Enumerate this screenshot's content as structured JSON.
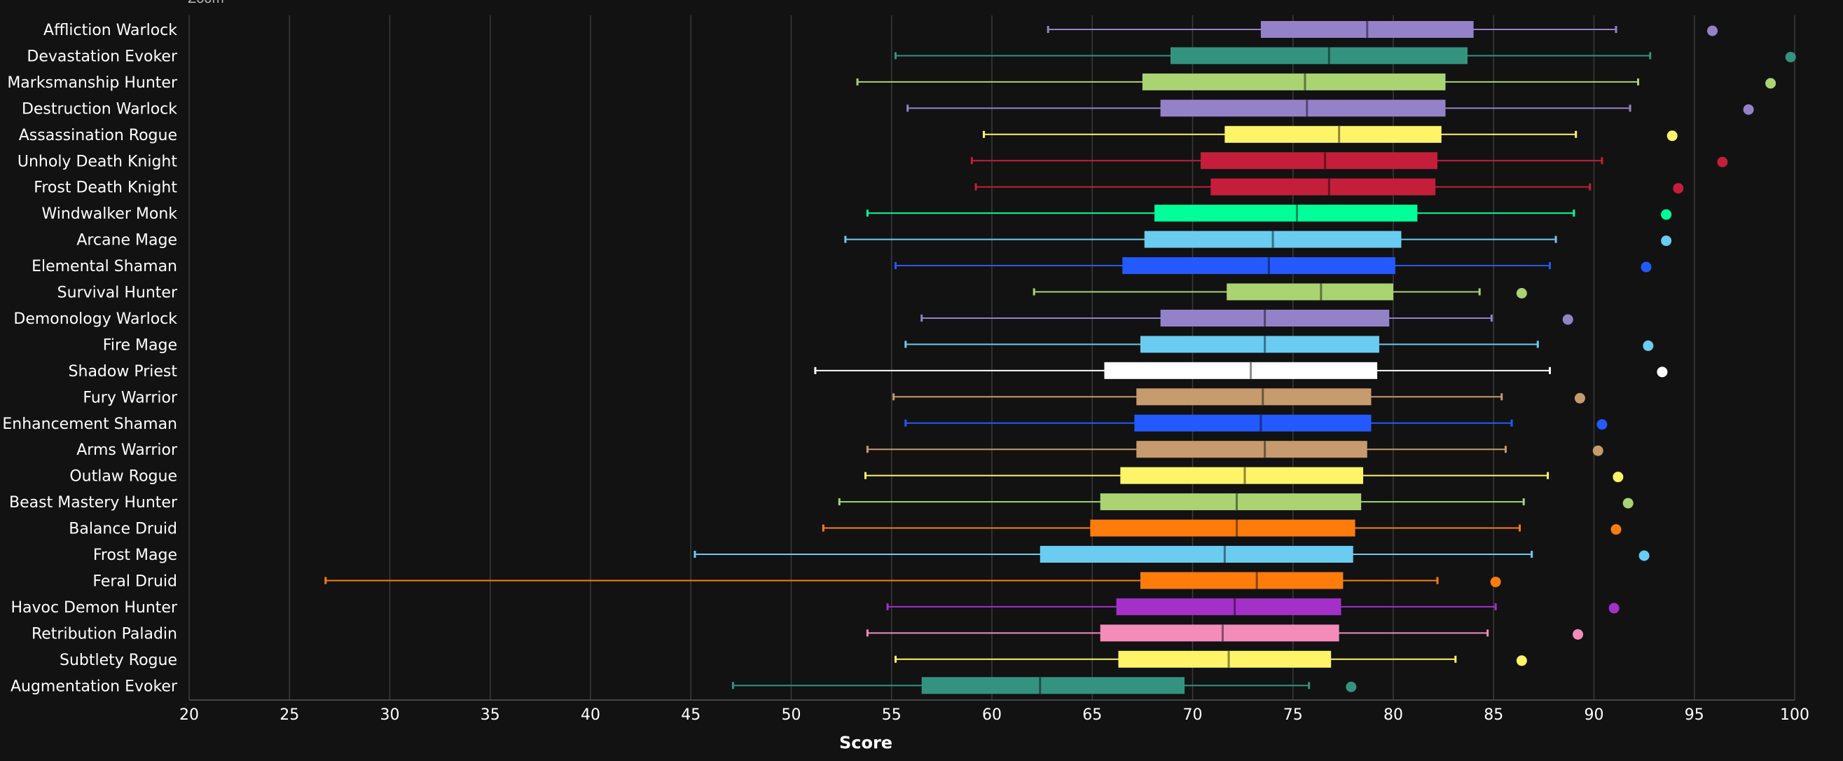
{
  "top_label": "Zoom",
  "chart_data": {
    "type": "boxplot",
    "title": "",
    "xlabel": "Score",
    "ylabel": "",
    "xlim": [
      20,
      100
    ],
    "x_ticks": [
      20,
      25,
      30,
      35,
      40,
      45,
      50,
      55,
      60,
      65,
      70,
      75,
      80,
      85,
      90,
      95,
      100
    ],
    "grid": true,
    "orientation": "horizontal",
    "series": [
      {
        "name": "Affliction Warlock",
        "color": "#9482C9",
        "whisker_low": 62.8,
        "q1": 73.4,
        "median": 78.7,
        "q3": 84.0,
        "whisker_high": 91.1,
        "outlier": 95.9
      },
      {
        "name": "Devastation Evoker",
        "color": "#33937F",
        "whisker_low": 55.2,
        "q1": 68.9,
        "median": 76.8,
        "q3": 83.7,
        "whisker_high": 92.8,
        "outlier": 99.8
      },
      {
        "name": "Marksmanship Hunter",
        "color": "#AAD372",
        "whisker_low": 53.3,
        "q1": 67.5,
        "median": 75.6,
        "q3": 82.6,
        "whisker_high": 92.2,
        "outlier": 98.8
      },
      {
        "name": "Destruction Warlock",
        "color": "#9482C9",
        "whisker_low": 55.8,
        "q1": 68.4,
        "median": 75.7,
        "q3": 82.6,
        "whisker_high": 91.8,
        "outlier": 97.7
      },
      {
        "name": "Assassination Rogue",
        "color": "#FFF468",
        "whisker_low": 59.6,
        "q1": 71.6,
        "median": 77.3,
        "q3": 82.4,
        "whisker_high": 89.1,
        "outlier": 93.9
      },
      {
        "name": "Unholy Death Knight",
        "color": "#C41E3A",
        "whisker_low": 59.0,
        "q1": 70.4,
        "median": 76.6,
        "q3": 82.2,
        "whisker_high": 90.4,
        "outlier": 96.4
      },
      {
        "name": "Frost Death Knight",
        "color": "#C41E3A",
        "whisker_low": 59.2,
        "q1": 70.9,
        "median": 76.8,
        "q3": 82.1,
        "whisker_high": 89.8,
        "outlier": 94.2
      },
      {
        "name": "Windwalker Monk",
        "color": "#00FF98",
        "whisker_low": 53.8,
        "q1": 68.1,
        "median": 75.2,
        "q3": 81.2,
        "whisker_high": 89.0,
        "outlier": 93.6
      },
      {
        "name": "Arcane Mage",
        "color": "#69CCF0",
        "whisker_low": 52.7,
        "q1": 67.6,
        "median": 74.0,
        "q3": 80.4,
        "whisker_high": 88.1,
        "outlier": 93.6
      },
      {
        "name": "Elemental Shaman",
        "color": "#2459FF",
        "whisker_low": 55.2,
        "q1": 66.5,
        "median": 73.8,
        "q3": 80.1,
        "whisker_high": 87.8,
        "outlier": 92.6
      },
      {
        "name": "Survival Hunter",
        "color": "#AAD372",
        "whisker_low": 62.1,
        "q1": 71.7,
        "median": 76.4,
        "q3": 80.0,
        "whisker_high": 84.3,
        "outlier": 86.4
      },
      {
        "name": "Demonology Warlock",
        "color": "#9482C9",
        "whisker_low": 56.5,
        "q1": 68.4,
        "median": 73.6,
        "q3": 79.8,
        "whisker_high": 84.9,
        "outlier": 88.7
      },
      {
        "name": "Fire Mage",
        "color": "#69CCF0",
        "whisker_low": 55.7,
        "q1": 67.4,
        "median": 73.6,
        "q3": 79.3,
        "whisker_high": 87.2,
        "outlier": 92.7
      },
      {
        "name": "Shadow Priest",
        "color": "#FFFFFF",
        "whisker_low": 51.2,
        "q1": 65.6,
        "median": 72.9,
        "q3": 79.2,
        "whisker_high": 87.8,
        "outlier": 93.4
      },
      {
        "name": "Fury Warrior",
        "color": "#C69B6D",
        "whisker_low": 55.1,
        "q1": 67.2,
        "median": 73.5,
        "q3": 78.9,
        "whisker_high": 85.4,
        "outlier": 89.3
      },
      {
        "name": "Enhancement Shaman",
        "color": "#2459FF",
        "whisker_low": 55.7,
        "q1": 67.1,
        "median": 73.4,
        "q3": 78.9,
        "whisker_high": 85.9,
        "outlier": 90.4
      },
      {
        "name": "Arms Warrior",
        "color": "#C69B6D",
        "whisker_low": 53.8,
        "q1": 67.2,
        "median": 73.6,
        "q3": 78.7,
        "whisker_high": 85.6,
        "outlier": 90.2
      },
      {
        "name": "Outlaw Rogue",
        "color": "#FFF468",
        "whisker_low": 53.7,
        "q1": 66.4,
        "median": 72.6,
        "q3": 78.5,
        "whisker_high": 87.7,
        "outlier": 91.2
      },
      {
        "name": "Beast Mastery Hunter",
        "color": "#AAD372",
        "whisker_low": 52.4,
        "q1": 65.4,
        "median": 72.2,
        "q3": 78.4,
        "whisker_high": 86.5,
        "outlier": 91.7
      },
      {
        "name": "Balance Druid",
        "color": "#FF7C0A",
        "whisker_low": 51.6,
        "q1": 64.9,
        "median": 72.2,
        "q3": 78.1,
        "whisker_high": 86.3,
        "outlier": 91.1
      },
      {
        "name": "Frost Mage",
        "color": "#69CCF0",
        "whisker_low": 45.2,
        "q1": 62.4,
        "median": 71.6,
        "q3": 78.0,
        "whisker_high": 86.9,
        "outlier": 92.5
      },
      {
        "name": "Feral Druid",
        "color": "#FF7C0A",
        "whisker_low": 26.8,
        "q1": 67.4,
        "median": 73.2,
        "q3": 77.5,
        "whisker_high": 82.2,
        "outlier": 85.1
      },
      {
        "name": "Havoc Demon Hunter",
        "color": "#A330C9",
        "whisker_low": 54.8,
        "q1": 66.2,
        "median": 72.1,
        "q3": 77.4,
        "whisker_high": 85.1,
        "outlier": 91.0
      },
      {
        "name": "Retribution Paladin",
        "color": "#F48CBA",
        "whisker_low": 53.8,
        "q1": 65.4,
        "median": 71.5,
        "q3": 77.3,
        "whisker_high": 84.7,
        "outlier": 89.2
      },
      {
        "name": "Subtlety Rogue",
        "color": "#FFF468",
        "whisker_low": 55.2,
        "q1": 66.3,
        "median": 71.8,
        "q3": 76.9,
        "whisker_high": 83.1,
        "outlier": 86.4
      },
      {
        "name": "Augmentation Evoker",
        "color": "#33937F",
        "whisker_low": 47.1,
        "q1": 56.5,
        "median": 62.4,
        "q3": 69.6,
        "whisker_high": 75.8,
        "outlier": 77.9
      }
    ]
  }
}
